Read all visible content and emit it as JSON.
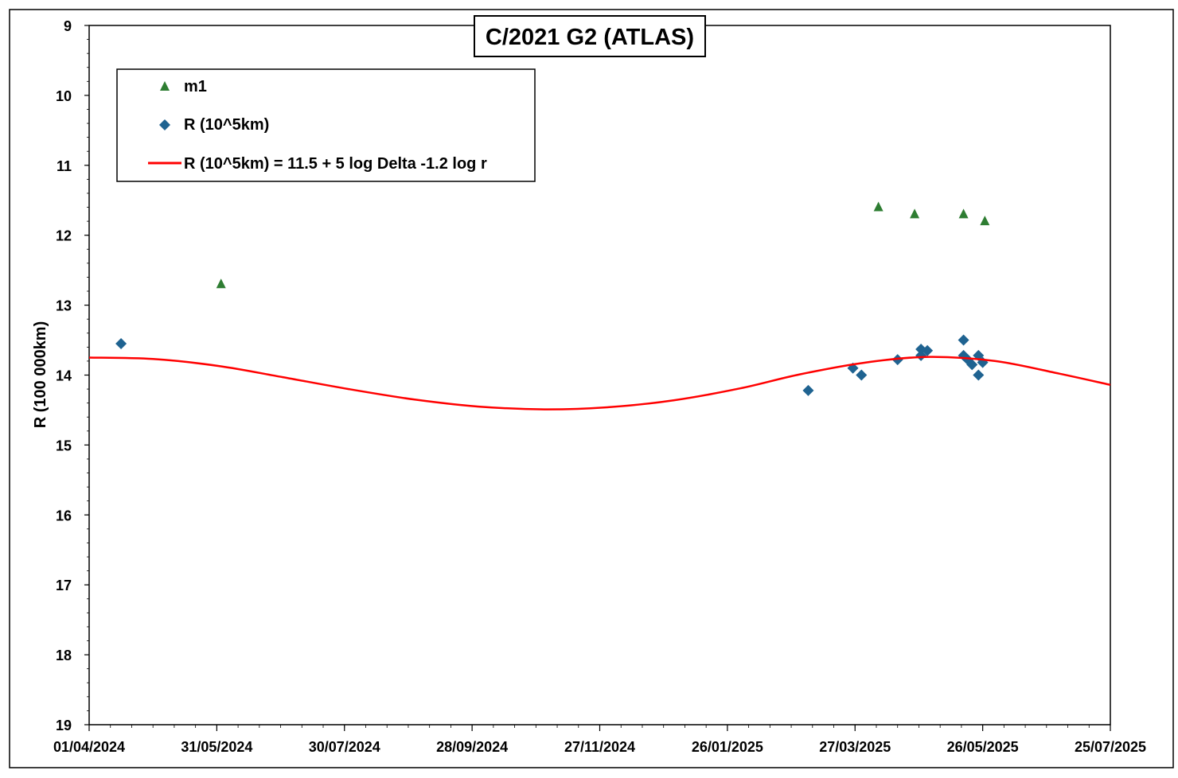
{
  "chart_data": {
    "type": "scatter",
    "title": "C/2021 G2 (ATLAS)",
    "xlabel": "",
    "ylabel": "R (100 000km)",
    "x_axis_type": "date",
    "xlim": [
      "2024-04-01",
      "2025-07-25"
    ],
    "ylim": [
      9,
      19
    ],
    "y_inverted": true,
    "grid": false,
    "legend_position": "top-left",
    "x_ticks": [
      "01/04/2024",
      "31/05/2024",
      "30/07/2024",
      "28/09/2024",
      "27/11/2024",
      "26/01/2025",
      "27/03/2025",
      "26/05/2025",
      "25/07/2025"
    ],
    "y_ticks": [
      9,
      10,
      11,
      12,
      13,
      14,
      15,
      16,
      17,
      18,
      19
    ],
    "series": [
      {
        "name": "m1",
        "kind": "scatter",
        "marker": "triangle",
        "color": "#2e7d32",
        "points": [
          {
            "x": "2024-06-02",
            "y": 12.7
          },
          {
            "x": "2025-04-07",
            "y": 11.6
          },
          {
            "x": "2025-04-24",
            "y": 11.7
          },
          {
            "x": "2025-05-17",
            "y": 11.7
          },
          {
            "x": "2025-05-27",
            "y": 11.8
          }
        ]
      },
      {
        "name": "R (10^5km)",
        "kind": "scatter",
        "marker": "diamond",
        "color": "#1f6391",
        "points": [
          {
            "x": "2024-04-16",
            "y": 13.55
          },
          {
            "x": "2025-03-05",
            "y": 14.22
          },
          {
            "x": "2025-03-26",
            "y": 13.9
          },
          {
            "x": "2025-03-30",
            "y": 14.0
          },
          {
            "x": "2025-04-16",
            "y": 13.78
          },
          {
            "x": "2025-04-27",
            "y": 13.63
          },
          {
            "x": "2025-04-27",
            "y": 13.72
          },
          {
            "x": "2025-04-30",
            "y": 13.65
          },
          {
            "x": "2025-05-17",
            "y": 13.5
          },
          {
            "x": "2025-05-17",
            "y": 13.72
          },
          {
            "x": "2025-05-19",
            "y": 13.78
          },
          {
            "x": "2025-05-21",
            "y": 13.85
          },
          {
            "x": "2025-05-24",
            "y": 13.72
          },
          {
            "x": "2025-05-24",
            "y": 14.0
          },
          {
            "x": "2025-05-26",
            "y": 13.82
          }
        ]
      },
      {
        "name": "R (10^5km) = 11.5 + 5 log Delta -1.2 log r",
        "kind": "line",
        "color": "#ff0000",
        "points": [
          {
            "x": "2024-04-01",
            "y": 13.75
          },
          {
            "x": "2024-05-01",
            "y": 13.77
          },
          {
            "x": "2024-06-01",
            "y": 13.87
          },
          {
            "x": "2024-07-01",
            "y": 14.03
          },
          {
            "x": "2024-08-01",
            "y": 14.2
          },
          {
            "x": "2024-09-01",
            "y": 14.35
          },
          {
            "x": "2024-10-01",
            "y": 14.45
          },
          {
            "x": "2024-11-01",
            "y": 14.49
          },
          {
            "x": "2024-12-01",
            "y": 14.46
          },
          {
            "x": "2025-01-01",
            "y": 14.36
          },
          {
            "x": "2025-02-01",
            "y": 14.19
          },
          {
            "x": "2025-03-01",
            "y": 13.99
          },
          {
            "x": "2025-04-01",
            "y": 13.82
          },
          {
            "x": "2025-05-01",
            "y": 13.74
          },
          {
            "x": "2025-06-01",
            "y": 13.8
          },
          {
            "x": "2025-07-01",
            "y": 13.98
          },
          {
            "x": "2025-07-25",
            "y": 14.14
          }
        ]
      }
    ]
  }
}
